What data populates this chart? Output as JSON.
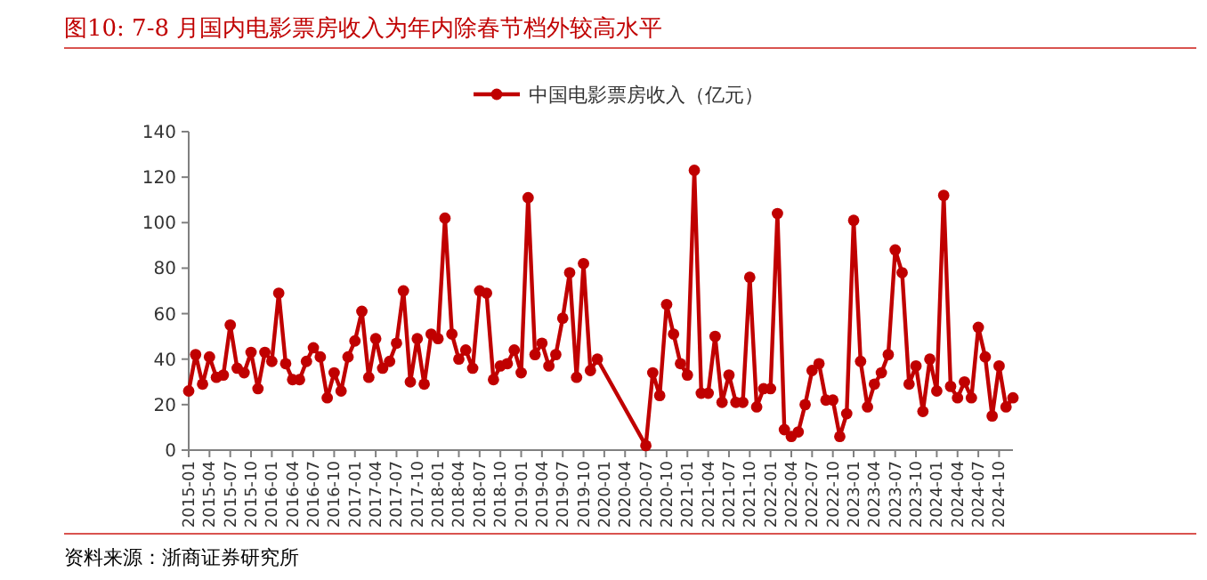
{
  "chart_data": {
    "type": "line",
    "title": "图10:   7-8 月国内电影票房收入为年内除春节档外较高水平",
    "annotations": [
      "资料来源：浙商证券研究所"
    ],
    "x": [
      "2015-01",
      "2015-02",
      "2015-03",
      "2015-04",
      "2015-05",
      "2015-06",
      "2015-07",
      "2015-08",
      "2015-09",
      "2015-10",
      "2015-11",
      "2015-12",
      "2016-01",
      "2016-02",
      "2016-03",
      "2016-04",
      "2016-05",
      "2016-06",
      "2016-07",
      "2016-08",
      "2016-09",
      "2016-10",
      "2016-11",
      "2016-12",
      "2017-01",
      "2017-02",
      "2017-03",
      "2017-04",
      "2017-05",
      "2017-06",
      "2017-07",
      "2017-08",
      "2017-09",
      "2017-10",
      "2017-11",
      "2017-12",
      "2018-01",
      "2018-02",
      "2018-03",
      "2018-04",
      "2018-05",
      "2018-06",
      "2018-07",
      "2018-08",
      "2018-09",
      "2018-10",
      "2018-11",
      "2018-12",
      "2019-01",
      "2019-02",
      "2019-03",
      "2019-04",
      "2019-05",
      "2019-06",
      "2019-07",
      "2019-08",
      "2019-09",
      "2019-10",
      "2019-11",
      "2019-12",
      "2020-07",
      "2020-08",
      "2020-09",
      "2020-10",
      "2020-11",
      "2020-12",
      "2021-01",
      "2021-02",
      "2021-03",
      "2021-04",
      "2021-05",
      "2021-06",
      "2021-07",
      "2021-08",
      "2021-09",
      "2021-10",
      "2021-11",
      "2021-12",
      "2022-01",
      "2022-02",
      "2022-03",
      "2022-04",
      "2022-05",
      "2022-06",
      "2022-07",
      "2022-08",
      "2022-09",
      "2022-10",
      "2022-11",
      "2022-12",
      "2023-01",
      "2023-02",
      "2023-03",
      "2023-04",
      "2023-05",
      "2023-06",
      "2023-07",
      "2023-08",
      "2023-09",
      "2023-10",
      "2023-11",
      "2023-12",
      "2024-01",
      "2024-02",
      "2024-03",
      "2024-04",
      "2024-05",
      "2024-06",
      "2024-07",
      "2024-08",
      "2024-09",
      "2024-10",
      "2024-11",
      "2024-12"
    ],
    "series": [
      {
        "name": "中国电影票房收入（亿元）",
        "color": "#c00000",
        "values": [
          26,
          42,
          29,
          41,
          32,
          33,
          55,
          36,
          34,
          43,
          27,
          43,
          39,
          69,
          38,
          31,
          31,
          39,
          45,
          41,
          23,
          34,
          26,
          41,
          48,
          61,
          32,
          49,
          36,
          39,
          47,
          70,
          30,
          49,
          29,
          51,
          49,
          102,
          51,
          40,
          44,
          36,
          70,
          69,
          31,
          37,
          38,
          44,
          34,
          111,
          42,
          47,
          37,
          42,
          58,
          78,
          32,
          82,
          35,
          40,
          2,
          34,
          24,
          64,
          51,
          38,
          33,
          123,
          25,
          25,
          50,
          21,
          33,
          21,
          21,
          76,
          19,
          27,
          27,
          104,
          9,
          6,
          8,
          20,
          35,
          38,
          22,
          22,
          6,
          16,
          101,
          39,
          19,
          29,
          34,
          42,
          88,
          78,
          29,
          37,
          17,
          40,
          26,
          112,
          28,
          23,
          30,
          23,
          54,
          41,
          15,
          37,
          19,
          23
        ]
      }
    ],
    "xlim": [
      "2015-01",
      "2024-12"
    ],
    "xticks": [
      "2015-01",
      "2015-04",
      "2015-07",
      "2015-10",
      "2016-01",
      "2016-04",
      "2016-07",
      "2016-10",
      "2017-01",
      "2017-04",
      "2017-07",
      "2017-10",
      "2018-01",
      "2018-04",
      "2018-07",
      "2018-10",
      "2019-01",
      "2019-04",
      "2019-07",
      "2019-10",
      "2020-01",
      "2020-04",
      "2020-07",
      "2020-10",
      "2021-01",
      "2021-04",
      "2021-07",
      "2021-10",
      "2022-01",
      "2022-04",
      "2022-07",
      "2022-10",
      "2023-01",
      "2023-04",
      "2023-07",
      "2023-10",
      "2024-01",
      "2024-04",
      "2024-07",
      "2024-10"
    ],
    "ylim": [
      0,
      140
    ],
    "yticks": [
      0,
      20,
      40,
      60,
      80,
      100,
      120,
      140
    ],
    "legend": "top",
    "marker": "circle",
    "grid": false
  }
}
